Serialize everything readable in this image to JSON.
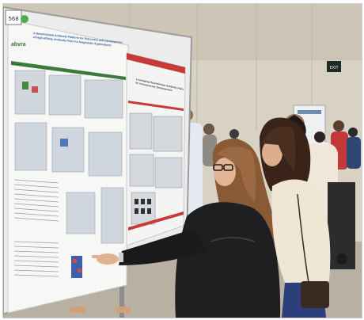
{
  "photo": {
    "board_number": "568",
    "left_poster": {
      "logo": "abvra",
      "title_line1": "A Recombinant Antibody Platform for Discovery and Development",
      "title_line2": "of High Affinity Antibody Pairs for Diagnostic Applications"
    },
    "right_poster": {
      "title_line1": "Leveraging Recombinant Antibody Pairs",
      "title_line2": "for Immunoassay Development"
    },
    "exit_sign": "EXIT"
  }
}
